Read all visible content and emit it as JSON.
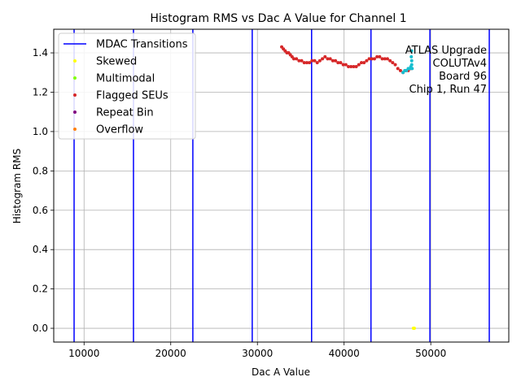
{
  "chart_data": {
    "type": "scatter",
    "title": "Histogram RMS vs Dac A Value for Channel 1",
    "xlabel": "Dac A Value",
    "ylabel": "Histogram RMS",
    "xlim": [
      6500,
      59000
    ],
    "ylim": [
      -0.07,
      1.52
    ],
    "xticks": [
      10000,
      20000,
      30000,
      40000,
      50000
    ],
    "xtick_labels": [
      "10000",
      "20000",
      "30000",
      "40000",
      "50000"
    ],
    "yticks": [
      0.0,
      0.2,
      0.4,
      0.6,
      0.8,
      1.0,
      1.2,
      1.4
    ],
    "ytick_labels": [
      "0.0",
      "0.2",
      "0.4",
      "0.6",
      "0.8",
      "1.0",
      "1.2",
      "1.4"
    ],
    "grid": true,
    "legend_position": "top-left",
    "mdac_transitions": {
      "name": "MDAC Transitions",
      "color": "#0000ff",
      "x": [
        8850,
        15700,
        22550,
        29400,
        36250,
        43100,
        49900,
        56750
      ]
    },
    "series": [
      {
        "name": "Skewed",
        "color": "#ffff00",
        "points": [
          [
            48000,
            0.0
          ],
          [
            48100,
            0.0
          ]
        ]
      },
      {
        "name": "Multimodal",
        "color": "#7fff00",
        "points": []
      },
      {
        "name": "Flagged SEUs",
        "color": "#d62728",
        "points": [
          [
            32800,
            1.43
          ],
          [
            33000,
            1.42
          ],
          [
            33200,
            1.41
          ],
          [
            33400,
            1.4
          ],
          [
            33600,
            1.4
          ],
          [
            33800,
            1.39
          ],
          [
            34000,
            1.38
          ],
          [
            34200,
            1.37
          ],
          [
            34500,
            1.37
          ],
          [
            34800,
            1.36
          ],
          [
            35100,
            1.36
          ],
          [
            35400,
            1.35
          ],
          [
            35700,
            1.35
          ],
          [
            36000,
            1.35
          ],
          [
            36300,
            1.36
          ],
          [
            36600,
            1.36
          ],
          [
            36900,
            1.35
          ],
          [
            37200,
            1.36
          ],
          [
            37500,
            1.37
          ],
          [
            37800,
            1.38
          ],
          [
            38100,
            1.37
          ],
          [
            38400,
            1.37
          ],
          [
            38700,
            1.36
          ],
          [
            39000,
            1.36
          ],
          [
            39300,
            1.35
          ],
          [
            39600,
            1.35
          ],
          [
            39900,
            1.34
          ],
          [
            40200,
            1.34
          ],
          [
            40500,
            1.33
          ],
          [
            40800,
            1.33
          ],
          [
            41100,
            1.33
          ],
          [
            41400,
            1.33
          ],
          [
            41700,
            1.34
          ],
          [
            42000,
            1.35
          ],
          [
            42300,
            1.35
          ],
          [
            42600,
            1.36
          ],
          [
            42900,
            1.37
          ],
          [
            43200,
            1.37
          ],
          [
            43500,
            1.37
          ],
          [
            43800,
            1.38
          ],
          [
            44100,
            1.38
          ],
          [
            44400,
            1.37
          ],
          [
            44700,
            1.37
          ],
          [
            45000,
            1.37
          ],
          [
            45300,
            1.36
          ],
          [
            45600,
            1.35
          ],
          [
            45900,
            1.34
          ],
          [
            46200,
            1.32
          ],
          [
            46500,
            1.31
          ],
          [
            46800,
            1.3
          ],
          [
            47100,
            1.31
          ],
          [
            47400,
            1.31
          ],
          [
            47700,
            1.32
          ]
        ]
      },
      {
        "name": "Repeat Bin",
        "color": "#800080",
        "points": []
      },
      {
        "name": "Overflow",
        "color": "#ff7f0e",
        "points": []
      },
      {
        "name": "",
        "color": "#17becf",
        "points": [
          [
            46800,
            1.3
          ],
          [
            47000,
            1.31
          ],
          [
            47200,
            1.31
          ],
          [
            47400,
            1.32
          ],
          [
            47600,
            1.32
          ],
          [
            47700,
            1.33
          ],
          [
            47800,
            1.34
          ],
          [
            47800,
            1.36
          ],
          [
            47750,
            1.38
          ],
          [
            47800,
            1.41
          ],
          [
            47850,
            1.32
          ]
        ]
      }
    ],
    "annotation": [
      "ATLAS Upgrade",
      "COLUTAv4",
      "Board 96",
      "Chip 1, Run 47"
    ]
  }
}
